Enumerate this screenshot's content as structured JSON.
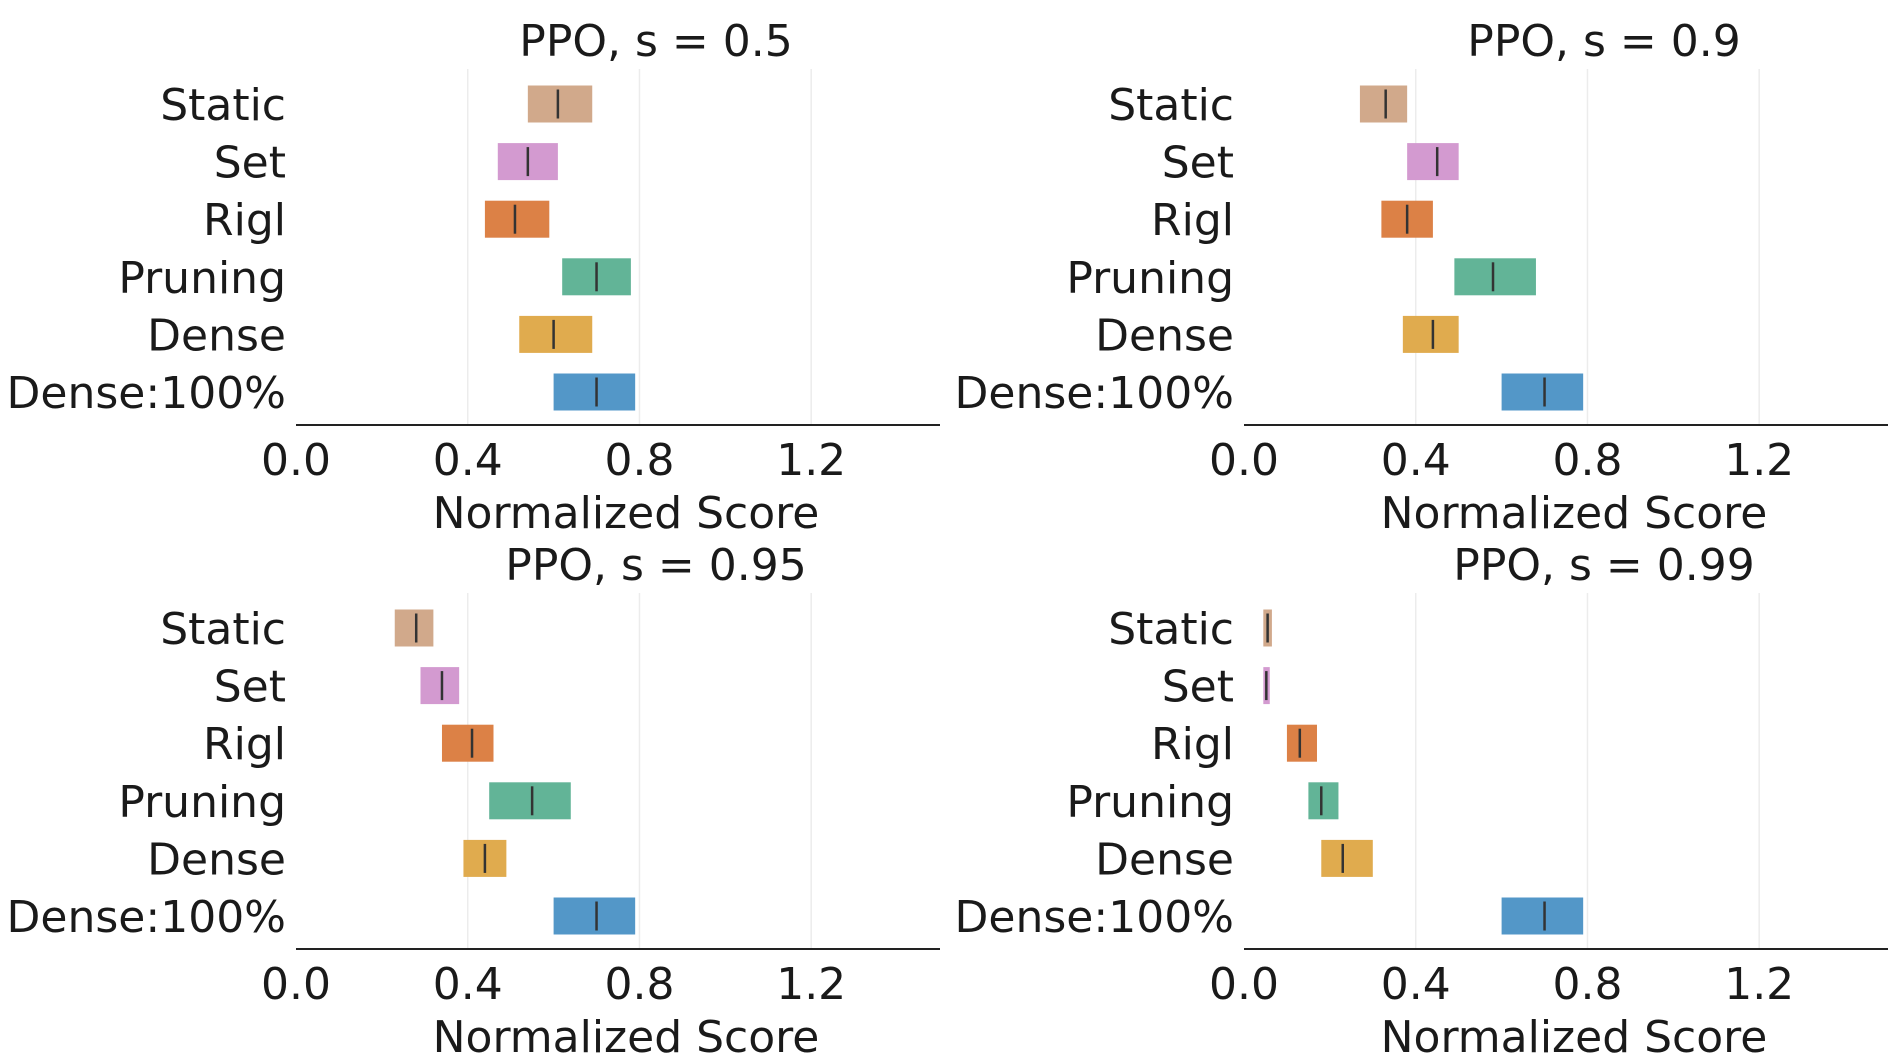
{
  "chart_data": [
    {
      "type": "bar",
      "title": "PPO, s = 0.5",
      "xlabel": "Normalized Score",
      "xlim": [
        0,
        1.5
      ],
      "xticks": [
        "0.0",
        "0.4",
        "0.8",
        "1.2"
      ],
      "xtick_values": [
        0,
        0.4,
        0.8,
        1.2
      ],
      "grid": "vertical",
      "categories": [
        "Static",
        "Set",
        "Rigl",
        "Pruning",
        "Dense",
        "Dense:100%"
      ],
      "intervals": [
        {
          "name": "Static",
          "low": 0.54,
          "high": 0.69,
          "median": 0.61
        },
        {
          "name": "Set",
          "low": 0.47,
          "high": 0.61,
          "median": 0.54
        },
        {
          "name": "Rigl",
          "low": 0.44,
          "high": 0.59,
          "median": 0.51
        },
        {
          "name": "Pruning",
          "low": 0.62,
          "high": 0.78,
          "median": 0.7
        },
        {
          "name": "Dense",
          "low": 0.52,
          "high": 0.69,
          "median": 0.6
        },
        {
          "name": "Dense:100%",
          "low": 0.6,
          "high": 0.79,
          "median": 0.7
        }
      ]
    },
    {
      "type": "bar",
      "title": "PPO, s = 0.9",
      "xlabel": "Normalized Score",
      "xlim": [
        0,
        1.5
      ],
      "xticks": [
        "0.0",
        "0.4",
        "0.8",
        "1.2"
      ],
      "xtick_values": [
        0,
        0.4,
        0.8,
        1.2
      ],
      "grid": "vertical",
      "categories": [
        "Static",
        "Set",
        "Rigl",
        "Pruning",
        "Dense",
        "Dense:100%"
      ],
      "intervals": [
        {
          "name": "Static",
          "low": 0.27,
          "high": 0.38,
          "median": 0.33
        },
        {
          "name": "Set",
          "low": 0.38,
          "high": 0.5,
          "median": 0.45
        },
        {
          "name": "Rigl",
          "low": 0.32,
          "high": 0.44,
          "median": 0.38
        },
        {
          "name": "Pruning",
          "low": 0.49,
          "high": 0.68,
          "median": 0.58
        },
        {
          "name": "Dense",
          "low": 0.37,
          "high": 0.5,
          "median": 0.44
        },
        {
          "name": "Dense:100%",
          "low": 0.6,
          "high": 0.79,
          "median": 0.7
        }
      ]
    },
    {
      "type": "bar",
      "title": "PPO, s = 0.95",
      "xlabel": "Normalized Score",
      "xlim": [
        0,
        1.5
      ],
      "xticks": [
        "0.0",
        "0.4",
        "0.8",
        "1.2"
      ],
      "xtick_values": [
        0,
        0.4,
        0.8,
        1.2
      ],
      "grid": "vertical",
      "categories": [
        "Static",
        "Set",
        "Rigl",
        "Pruning",
        "Dense",
        "Dense:100%"
      ],
      "intervals": [
        {
          "name": "Static",
          "low": 0.23,
          "high": 0.32,
          "median": 0.28
        },
        {
          "name": "Set",
          "low": 0.29,
          "high": 0.38,
          "median": 0.34
        },
        {
          "name": "Rigl",
          "low": 0.34,
          "high": 0.46,
          "median": 0.41
        },
        {
          "name": "Pruning",
          "low": 0.45,
          "high": 0.64,
          "median": 0.55
        },
        {
          "name": "Dense",
          "low": 0.39,
          "high": 0.49,
          "median": 0.44
        },
        {
          "name": "Dense:100%",
          "low": 0.6,
          "high": 0.79,
          "median": 0.7
        }
      ]
    },
    {
      "type": "bar",
      "title": "PPO, s = 0.99",
      "xlabel": "Normalized Score",
      "xlim": [
        0,
        1.5
      ],
      "xticks": [
        "0.0",
        "0.4",
        "0.8",
        "1.2"
      ],
      "xtick_values": [
        0,
        0.4,
        0.8,
        1.2
      ],
      "grid": "vertical",
      "categories": [
        "Static",
        "Set",
        "Rigl",
        "Pruning",
        "Dense",
        "Dense:100%"
      ],
      "intervals": [
        {
          "name": "Static",
          "low": 0.045,
          "high": 0.065,
          "median": 0.055
        },
        {
          "name": "Set",
          "low": 0.045,
          "high": 0.06,
          "median": 0.052
        },
        {
          "name": "Rigl",
          "low": 0.1,
          "high": 0.17,
          "median": 0.13
        },
        {
          "name": "Pruning",
          "low": 0.15,
          "high": 0.22,
          "median": 0.18
        },
        {
          "name": "Dense",
          "low": 0.18,
          "high": 0.3,
          "median": 0.23
        },
        {
          "name": "Dense:100%",
          "low": 0.6,
          "high": 0.79,
          "median": 0.7
        }
      ]
    }
  ],
  "colors": {
    "Static": "#d1a98b",
    "Set": "#d39ad0",
    "Rigl": "#dc8146",
    "Pruning": "#62b497",
    "Dense": "#e0ab4e",
    "Dense:100%": "#5397c8",
    "median_line": "#333333",
    "axis": "#222222",
    "grid": "#ececec"
  }
}
